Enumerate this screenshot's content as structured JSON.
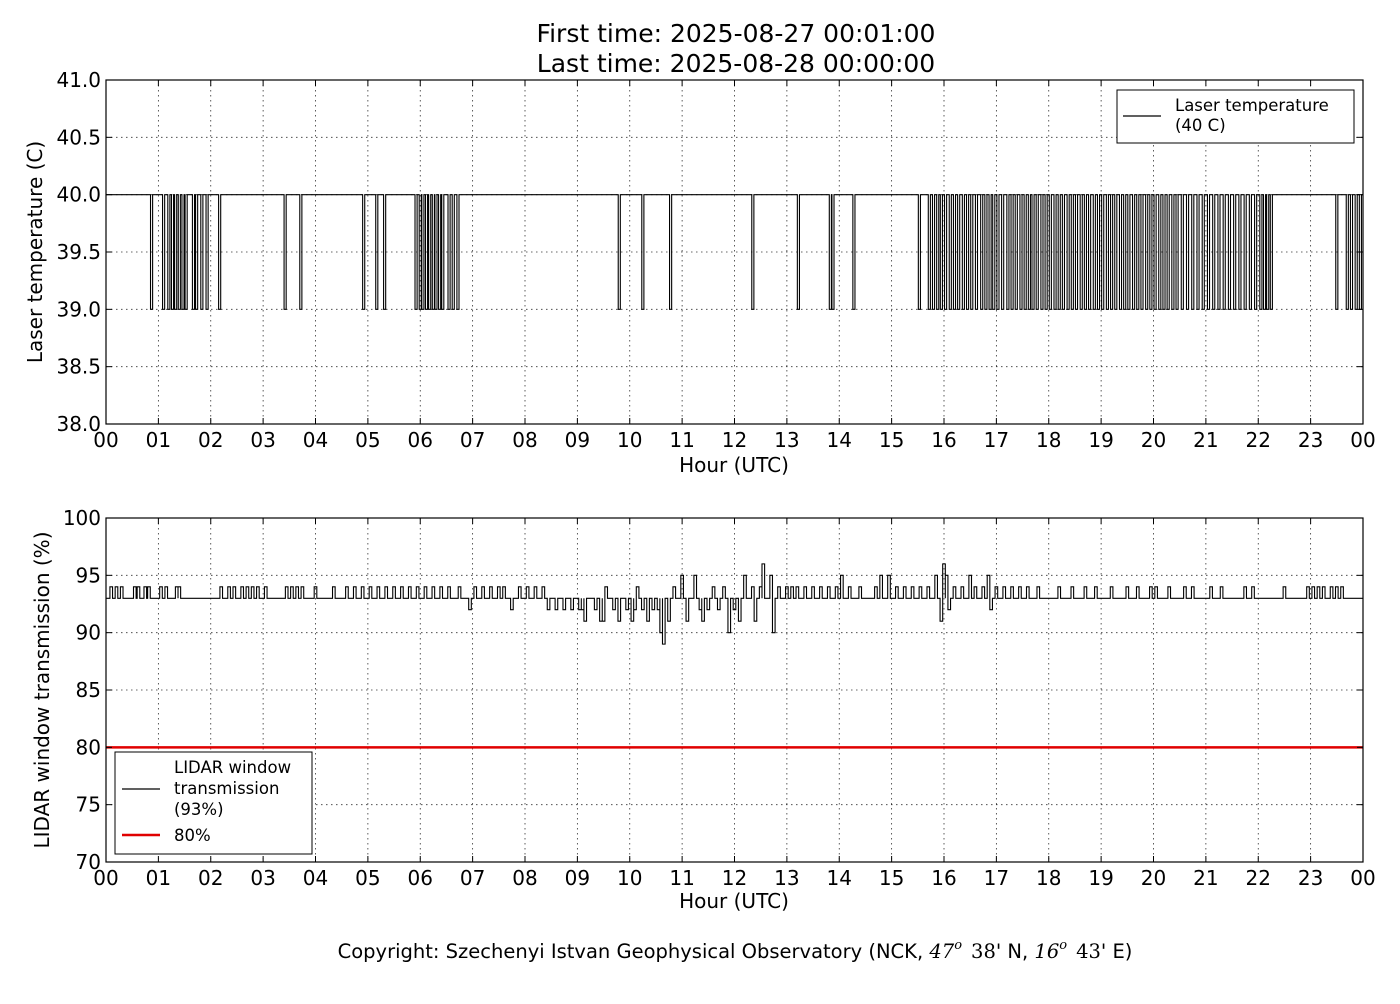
{
  "header": {
    "first_time": "First time: 2025-08-27 00:01:00",
    "last_time": "Last time: 2025-08-28 00:00:00"
  },
  "footer": {
    "copyright_prefix": "Copyright: Szechenyi Istvan Geophysical Observatory (NCK, ",
    "lat_deg": "47",
    "lat_min": "38",
    "lat_hemi": "' N, ",
    "lon_deg": "16",
    "lon_min": "43",
    "lon_hemi": "' E)",
    "degree_symbol": "o"
  },
  "colors": {
    "trace": "#000000",
    "threshold": "#e00000",
    "background": "#ffffff"
  },
  "chart_data": [
    {
      "type": "line",
      "xlabel": "Hour (UTC)",
      "ylabel": "Laser temperature (C)",
      "xlim": [
        0,
        24
      ],
      "ylim": [
        38.0,
        41.0
      ],
      "grid": true,
      "legend_position": "top-right",
      "x_ticks": [
        "00",
        "01",
        "02",
        "03",
        "04",
        "05",
        "06",
        "07",
        "08",
        "09",
        "10",
        "11",
        "12",
        "13",
        "14",
        "15",
        "16",
        "17",
        "18",
        "19",
        "20",
        "21",
        "22",
        "23",
        "00"
      ],
      "y_ticks": [
        "38.0",
        "38.5",
        "39.0",
        "39.5",
        "40.0",
        "40.5",
        "41.0"
      ],
      "series": [
        {
          "name": "Laser temperature (40 C)",
          "legend_lines": [
            "Laser temperature",
            "(40 C)"
          ],
          "baseline": 40.0,
          "dip_value": 39.0,
          "dip_times_hours": [
            0.87,
            1.1,
            1.2,
            1.27,
            1.33,
            1.4,
            1.47,
            1.53,
            1.67,
            1.73,
            1.83,
            1.93,
            2.17,
            3.42,
            3.72,
            4.92,
            5.17,
            5.32,
            5.92,
            6.0,
            6.05,
            6.12,
            6.18,
            6.25,
            6.3,
            6.37,
            6.43,
            6.55,
            6.63,
            6.72,
            9.8,
            10.25,
            10.78,
            12.35,
            13.22,
            13.83,
            13.88,
            14.28,
            15.53,
            15.72,
            15.8,
            15.88,
            15.95,
            16.03,
            16.12,
            16.2,
            16.28,
            16.37,
            16.45,
            16.53,
            16.62,
            16.72,
            16.8,
            16.88,
            16.95,
            17.03,
            17.12,
            17.22,
            17.3,
            17.38,
            17.47,
            17.55,
            17.63,
            17.7,
            17.78,
            17.87,
            17.95,
            18.03,
            18.12,
            18.2,
            18.28,
            18.37,
            18.45,
            18.53,
            18.62,
            18.7,
            18.78,
            18.87,
            18.95,
            19.03,
            19.12,
            19.2,
            19.28,
            19.37,
            19.45,
            19.53,
            19.62,
            19.7,
            19.78,
            19.87,
            19.95,
            20.03,
            20.12,
            20.2,
            20.28,
            20.37,
            20.45,
            20.55,
            20.65,
            20.75,
            20.85,
            20.95,
            21.05,
            21.15,
            21.25,
            21.35,
            21.45,
            21.55,
            21.65,
            21.75,
            21.85,
            21.95,
            22.05,
            22.12,
            22.18,
            22.25,
            23.5,
            23.7,
            23.78,
            23.87,
            23.95
          ]
        }
      ]
    },
    {
      "type": "line",
      "xlabel": "Hour (UTC)",
      "ylabel": "LIDAR window transmission (%)",
      "xlim": [
        0,
        24
      ],
      "ylim": [
        70,
        100
      ],
      "grid": true,
      "legend_position": "lower-left",
      "x_ticks": [
        "00",
        "01",
        "02",
        "03",
        "04",
        "05",
        "06",
        "07",
        "08",
        "09",
        "10",
        "11",
        "12",
        "13",
        "14",
        "15",
        "16",
        "17",
        "18",
        "19",
        "20",
        "21",
        "22",
        "23",
        "00"
      ],
      "y_ticks": [
        "70",
        "75",
        "80",
        "85",
        "90",
        "95",
        "100"
      ],
      "series": [
        {
          "name": "LIDAR window transmission (93%)",
          "legend_lines": [
            "LIDAR window",
            "transmission",
            "(93%)"
          ],
          "baseline": 93,
          "events": [
            [
              0.1,
              94
            ],
            [
              0.2,
              94
            ],
            [
              0.3,
              94
            ],
            [
              0.55,
              94
            ],
            [
              0.62,
              94
            ],
            [
              0.75,
              94
            ],
            [
              0.82,
              94
            ],
            [
              1.05,
              94
            ],
            [
              1.15,
              94
            ],
            [
              1.35,
              94
            ],
            [
              1.4,
              94
            ],
            [
              2.2,
              94
            ],
            [
              2.35,
              94
            ],
            [
              2.45,
              94
            ],
            [
              2.6,
              94
            ],
            [
              2.7,
              94
            ],
            [
              2.8,
              94
            ],
            [
              2.9,
              94
            ],
            [
              3.05,
              94
            ],
            [
              3.45,
              94
            ],
            [
              3.55,
              94
            ],
            [
              3.65,
              94
            ],
            [
              3.75,
              94
            ],
            [
              4.0,
              94
            ],
            [
              4.35,
              94
            ],
            [
              4.6,
              94
            ],
            [
              4.75,
              94
            ],
            [
              4.9,
              94
            ],
            [
              5.05,
              94
            ],
            [
              5.2,
              94
            ],
            [
              5.35,
              94
            ],
            [
              5.5,
              94
            ],
            [
              5.65,
              94
            ],
            [
              5.8,
              94
            ],
            [
              5.95,
              94
            ],
            [
              6.1,
              94
            ],
            [
              6.25,
              94
            ],
            [
              6.4,
              94
            ],
            [
              6.55,
              94
            ],
            [
              6.75,
              94
            ],
            [
              6.95,
              92
            ],
            [
              7.05,
              94
            ],
            [
              7.2,
              94
            ],
            [
              7.35,
              94
            ],
            [
              7.5,
              94
            ],
            [
              7.6,
              94
            ],
            [
              7.75,
              92
            ],
            [
              7.9,
              94
            ],
            [
              8.05,
              94
            ],
            [
              8.2,
              94
            ],
            [
              8.35,
              94
            ],
            [
              8.45,
              92
            ],
            [
              8.6,
              92
            ],
            [
              8.75,
              92
            ],
            [
              8.9,
              92
            ],
            [
              9.05,
              92
            ],
            [
              9.1,
              92
            ],
            [
              9.15,
              91
            ],
            [
              9.35,
              92
            ],
            [
              9.45,
              91
            ],
            [
              9.5,
              91
            ],
            [
              9.55,
              94
            ],
            [
              9.7,
              92
            ],
            [
              9.8,
              91
            ],
            [
              9.85,
              93
            ],
            [
              9.95,
              92
            ],
            [
              10.05,
              91
            ],
            [
              10.1,
              92
            ],
            [
              10.15,
              94
            ],
            [
              10.25,
              92
            ],
            [
              10.35,
              91
            ],
            [
              10.45,
              92
            ],
            [
              10.55,
              92
            ],
            [
              10.6,
              90
            ],
            [
              10.65,
              89
            ],
            [
              10.75,
              91
            ],
            [
              10.85,
              94
            ],
            [
              10.9,
              93
            ],
            [
              11.0,
              95
            ],
            [
              11.1,
              91
            ],
            [
              11.2,
              93
            ],
            [
              11.25,
              95
            ],
            [
              11.35,
              92
            ],
            [
              11.4,
              91
            ],
            [
              11.5,
              92
            ],
            [
              11.6,
              94
            ],
            [
              11.7,
              92
            ],
            [
              11.8,
              94
            ],
            [
              11.9,
              90
            ],
            [
              12.0,
              92
            ],
            [
              12.1,
              91
            ],
            [
              12.2,
              95
            ],
            [
              12.3,
              93
            ],
            [
              12.35,
              94
            ],
            [
              12.4,
              91
            ],
            [
              12.45,
              93
            ],
            [
              12.5,
              94
            ],
            [
              12.55,
              96
            ],
            [
              12.6,
              93
            ],
            [
              12.7,
              95
            ],
            [
              12.75,
              90
            ],
            [
              12.85,
              94
            ],
            [
              13.0,
              94
            ],
            [
              13.1,
              94
            ],
            [
              13.2,
              94
            ],
            [
              13.35,
              94
            ],
            [
              13.5,
              94
            ],
            [
              13.65,
              94
            ],
            [
              13.8,
              94
            ],
            [
              13.95,
              94
            ],
            [
              14.05,
              95
            ],
            [
              14.2,
              94
            ],
            [
              14.4,
              94
            ],
            [
              14.7,
              94
            ],
            [
              14.8,
              95
            ],
            [
              14.95,
              95
            ],
            [
              15.1,
              94
            ],
            [
              15.25,
              94
            ],
            [
              15.4,
              94
            ],
            [
              15.55,
              94
            ],
            [
              15.7,
              94
            ],
            [
              15.85,
              95
            ],
            [
              15.95,
              91
            ],
            [
              16.0,
              96
            ],
            [
              16.05,
              95
            ],
            [
              16.1,
              92
            ],
            [
              16.2,
              94
            ],
            [
              16.35,
              94
            ],
            [
              16.5,
              95
            ],
            [
              16.6,
              94
            ],
            [
              16.75,
              94
            ],
            [
              16.85,
              95
            ],
            [
              16.9,
              92
            ],
            [
              17.0,
              94
            ],
            [
              17.15,
              94
            ],
            [
              17.3,
              94
            ],
            [
              17.45,
              94
            ],
            [
              17.6,
              94
            ],
            [
              17.8,
              94
            ],
            [
              18.2,
              94
            ],
            [
              18.45,
              94
            ],
            [
              18.7,
              94
            ],
            [
              18.9,
              94
            ],
            [
              19.2,
              94
            ],
            [
              19.5,
              94
            ],
            [
              19.7,
              94
            ],
            [
              19.95,
              94
            ],
            [
              20.05,
              94
            ],
            [
              20.3,
              94
            ],
            [
              20.6,
              94
            ],
            [
              20.75,
              94
            ],
            [
              21.1,
              94
            ],
            [
              21.3,
              94
            ],
            [
              21.75,
              94
            ],
            [
              21.9,
              94
            ],
            [
              22.5,
              94
            ],
            [
              22.95,
              94
            ],
            [
              23.05,
              94
            ],
            [
              23.15,
              94
            ],
            [
              23.25,
              94
            ],
            [
              23.4,
              94
            ],
            [
              23.5,
              94
            ],
            [
              23.6,
              94
            ]
          ]
        },
        {
          "name": "80%",
          "constant": 80
        }
      ]
    }
  ]
}
